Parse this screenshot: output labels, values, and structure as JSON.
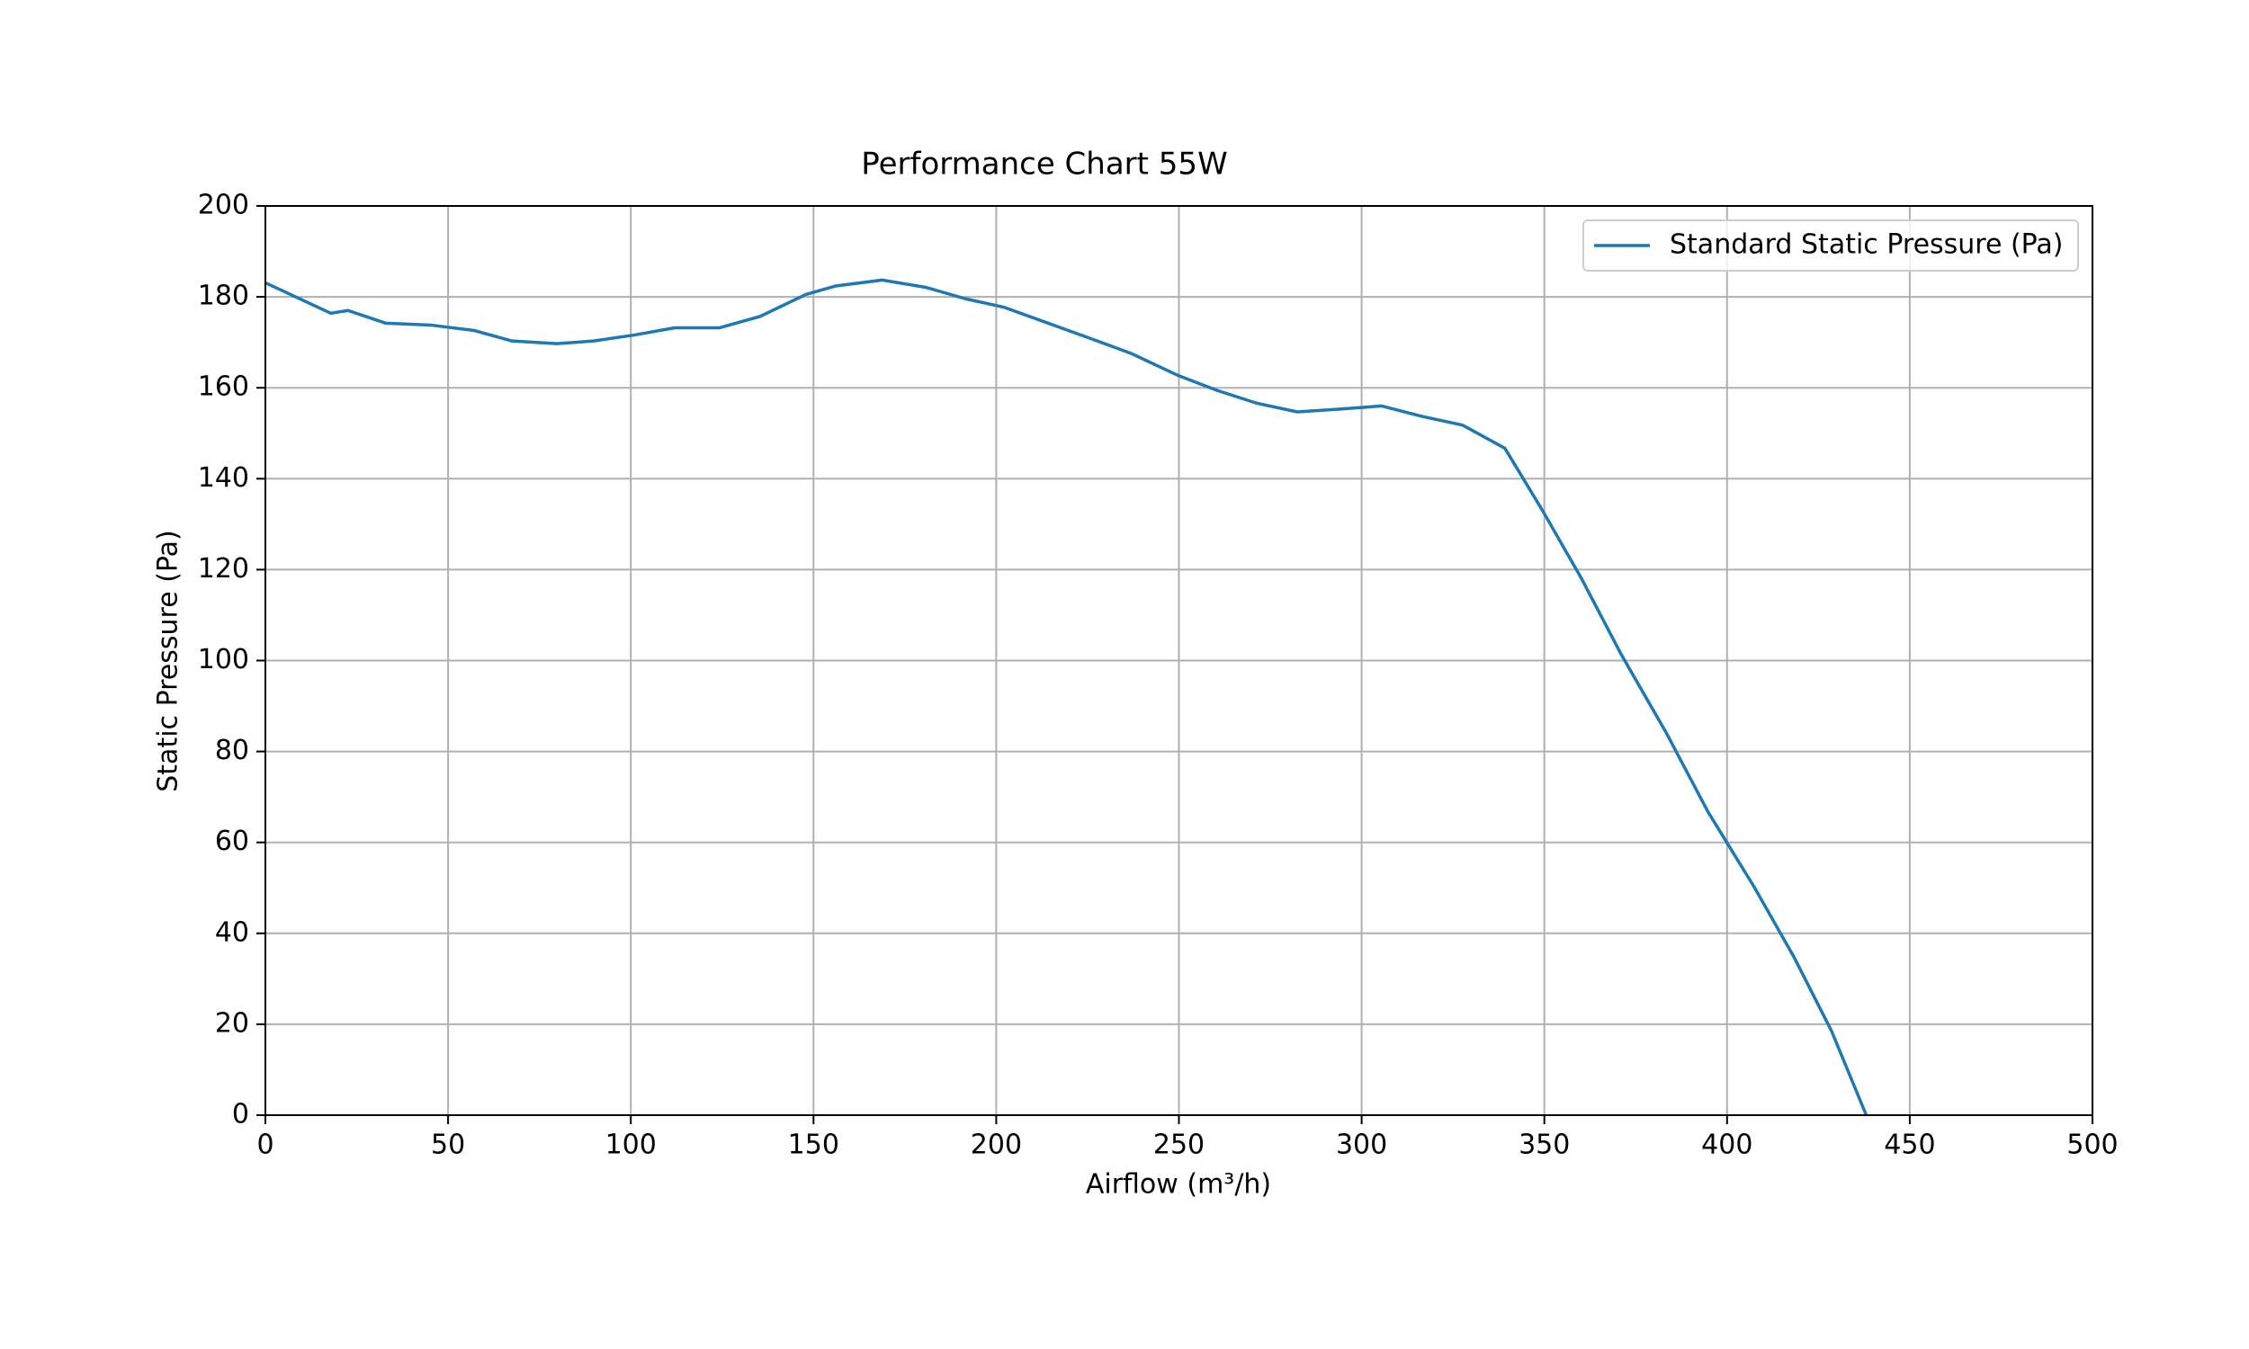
{
  "chart_data": {
    "type": "line",
    "title": "Performance Chart 55W",
    "x_label": "Airflow (m³/h)",
    "y_label": "Static Pressure (Pa)",
    "xlim": [
      0,
      500
    ],
    "xticks": [
      0,
      50,
      100,
      150,
      200,
      250,
      300,
      350,
      400,
      450,
      500
    ],
    "ylim": [
      0,
      200
    ],
    "yticks": [
      0,
      20,
      40,
      60,
      80,
      100,
      120,
      140,
      160,
      180,
      200
    ],
    "grid": true,
    "legend": "upper right",
    "series": [
      {
        "name": "Standard Static Pressure (Pa)",
        "color": "#1f77b4",
        "x": [
          0,
          17.9,
          22.6,
          33.0,
          45.3,
          57.2,
          67.5,
          79.8,
          89.8,
          100.9,
          112.0,
          124.3,
          135.4,
          147.8,
          156.1,
          168.8,
          180.7,
          191.5,
          202.2,
          225.3,
          237.1,
          249.8,
          260.2,
          271.3,
          282.4,
          293.6,
          305.5,
          316.6,
          327.6,
          339.2,
          349.5,
          360.2,
          371.0,
          383.3,
          394.8,
          407.5,
          418.3,
          428.6,
          438.1
        ],
        "values": [
          183.1,
          176.4,
          177.0,
          174.2,
          173.8,
          172.6,
          170.3,
          169.7,
          170.3,
          171.6,
          173.2,
          173.2,
          175.7,
          180.5,
          182.4,
          183.7,
          182.1,
          179.6,
          177.7,
          171.0,
          167.5,
          162.7,
          159.5,
          156.6,
          154.7,
          155.3,
          156.0,
          153.7,
          151.8,
          146.7,
          133.0,
          118.0,
          101.4,
          84.2,
          66.7,
          50.1,
          34.8,
          18.5,
          0
        ]
      }
    ]
  }
}
